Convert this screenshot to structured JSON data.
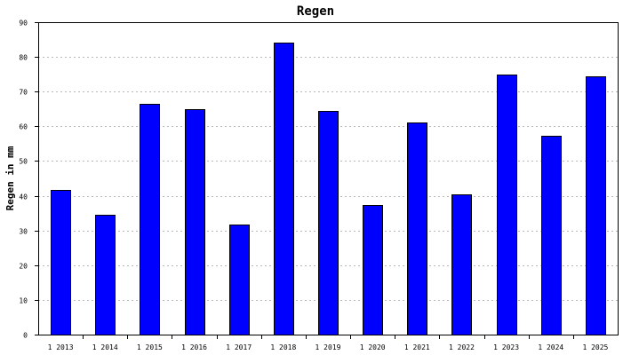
{
  "chart_data": {
    "type": "bar",
    "title": "Regen",
    "xlabel": "",
    "ylabel": "Regen in mm",
    "categories": [
      "1 2013",
      "1 2014",
      "1 2015",
      "1 2016",
      "1 2017",
      "1 2018",
      "1 2019",
      "1 2020",
      "1 2021",
      "1 2022",
      "1 2023",
      "1 2024",
      "1 2025"
    ],
    "values": [
      41.8,
      34.5,
      66.5,
      65.0,
      31.7,
      84.0,
      64.5,
      37.3,
      61.0,
      40.3,
      75.0,
      57.2,
      74.3
    ],
    "ylim": [
      0,
      90
    ],
    "yticks": [
      0,
      10,
      20,
      30,
      40,
      50,
      60,
      70,
      80,
      90
    ],
    "grid": true,
    "bar_color": "#0000ff",
    "bar_edge_color": "#000000",
    "grid_color": "#b8b8b8"
  }
}
